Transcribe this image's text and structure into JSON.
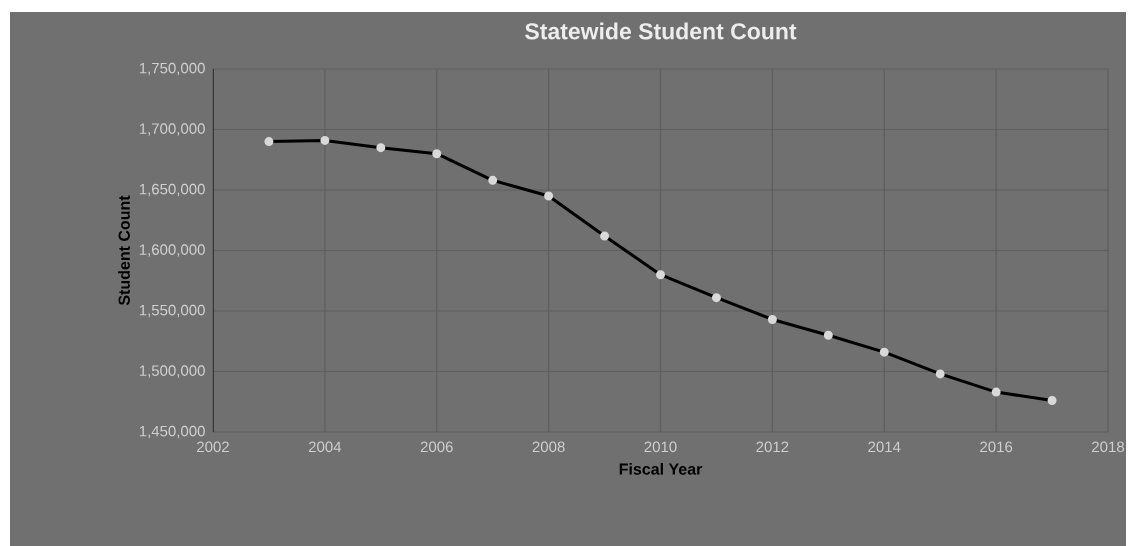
{
  "chart_data": {
    "type": "line",
    "title": "Statewide Student Count",
    "xlabel": "Fiscal Year",
    "ylabel": "Student Count",
    "x": [
      2003,
      2004,
      2005,
      2006,
      2007,
      2008,
      2009,
      2010,
      2011,
      2012,
      2013,
      2014,
      2015,
      2016,
      2017
    ],
    "series": [
      {
        "color": "#000000",
        "values": [
          1690000,
          1691000,
          1685000,
          1680000,
          1658000,
          1645000,
          1612000,
          1580000,
          1561000,
          1543000,
          1530000,
          1516000,
          1498000,
          1483000,
          1476000
        ]
      }
    ],
    "xlim": [
      2002,
      2018
    ],
    "xticks": [
      2002,
      2004,
      2006,
      2008,
      2010,
      2012,
      2014,
      2016,
      2018
    ],
    "ylim": [
      1450000,
      1750000
    ],
    "yticks": [
      {
        "value": 1450000,
        "label": "1,450,000"
      },
      {
        "value": 1500000,
        "label": "1,500,000"
      },
      {
        "value": 1550000,
        "label": "1,550,000"
      },
      {
        "value": 1600000,
        "label": "1,600,000"
      },
      {
        "value": 1650000,
        "label": "1,650,000"
      },
      {
        "value": 1700000,
        "label": "1,700,000"
      },
      {
        "value": 1750000,
        "label": "1,750,000"
      }
    ],
    "grid": true,
    "legend": false,
    "marker": "circle",
    "line_style": "solid"
  }
}
